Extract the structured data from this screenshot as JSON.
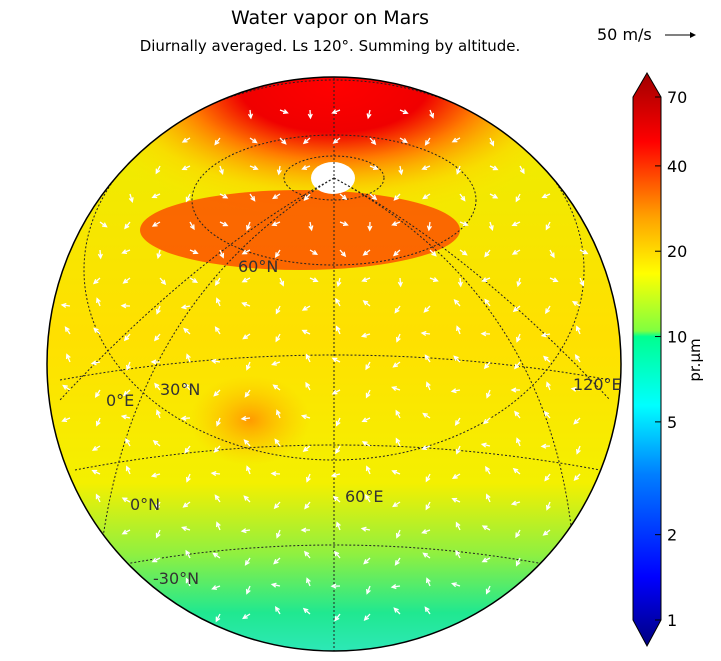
{
  "title": "Water vapor on Mars",
  "subtitle": "Diurnally averaged. Ls 120°. Summing by altitude.",
  "wind_scale": {
    "label": "50 m/s",
    "icon": "arrow-right-icon"
  },
  "map_labels": {
    "lat60": "60°N",
    "lat30": "30°N",
    "lat0": "0°N",
    "latm30": "-30°N",
    "lon0": "0°E",
    "lon60": "60°E",
    "lon120": "120°E"
  },
  "colorbar": {
    "unit": "pr.µm",
    "ticks": [
      "70",
      "40",
      "20",
      "10",
      "5",
      "2",
      "1"
    ],
    "tick_values": [
      70,
      40,
      20,
      10,
      5,
      2,
      1
    ],
    "range": [
      1,
      70
    ],
    "scale": "log",
    "colormap": [
      "#00007f",
      "#0000ff",
      "#007fff",
      "#00ffff",
      "#00ff90",
      "#7fff00",
      "#ffff00",
      "#ff7f00",
      "#ff0000",
      "#7f0000"
    ]
  }
}
